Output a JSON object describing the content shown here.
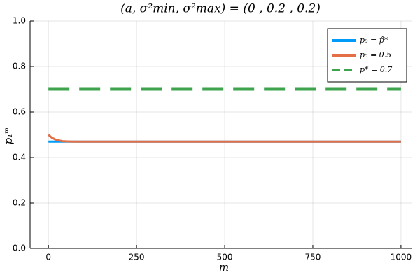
{
  "chart_data": {
    "type": "line",
    "title": "(a, σ²min, σ²max) = (0 , 0.2 , 0.2)",
    "x_label": "m",
    "y_label": "p₁ᵐ",
    "x": [
      0,
      10,
      20,
      30,
      40,
      50,
      60,
      80,
      100,
      200,
      300,
      400,
      500,
      600,
      700,
      800,
      900,
      1000
    ],
    "series": [
      {
        "name": "p₀ = p̂*",
        "color": "#009af9",
        "dash": false,
        "values": [
          0.47,
          0.47,
          0.47,
          0.47,
          0.47,
          0.47,
          0.47,
          0.47,
          0.47,
          0.47,
          0.47,
          0.47,
          0.47,
          0.47,
          0.47,
          0.47,
          0.47,
          0.47
        ]
      },
      {
        "name": "p₀ = 0.5",
        "color": "#e26f46",
        "dash": false,
        "values": [
          0.5,
          0.487,
          0.479,
          0.475,
          0.472,
          0.471,
          0.4705,
          0.47,
          0.47,
          0.47,
          0.47,
          0.47,
          0.47,
          0.47,
          0.47,
          0.47,
          0.47,
          0.47
        ]
      },
      {
        "name": "p* = 0.7",
        "color": "#3da44d",
        "dash": true,
        "values": [
          0.7,
          0.7,
          0.7,
          0.7,
          0.7,
          0.7,
          0.7,
          0.7,
          0.7,
          0.7,
          0.7,
          0.7,
          0.7,
          0.7,
          0.7,
          0.7,
          0.7,
          0.7
        ]
      }
    ],
    "xlim": [
      -52,
      1030
    ],
    "xticks": [
      0,
      250,
      500,
      750,
      1000
    ],
    "ylim": [
      0,
      1
    ],
    "yticks": [
      {
        "value": 0,
        "label": "0.0"
      },
      0.2,
      0.4,
      0.6,
      0.8,
      {
        "value": 1,
        "label": "1.0"
      }
    ],
    "grid": true,
    "legend": "top-right"
  }
}
